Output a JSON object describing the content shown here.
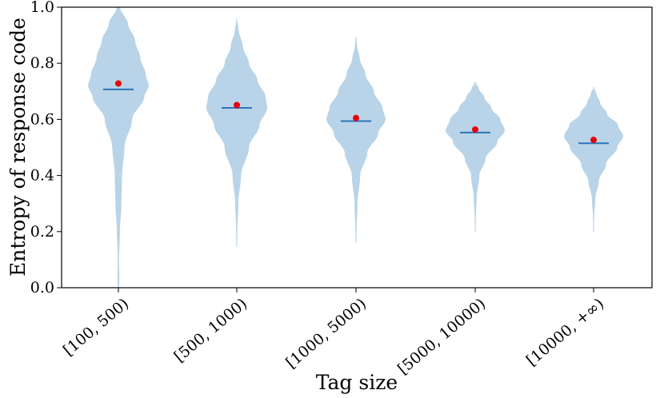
{
  "chart_data": {
    "type": "violin",
    "xlabel": "Tag size",
    "ylabel": "Entropy of response code",
    "ylim": [
      0.0,
      1.0
    ],
    "yticks": [
      "0.0",
      "0.2",
      "0.4",
      "0.6",
      "0.8",
      "1.0"
    ],
    "grid": false,
    "colors": {
      "violin": "#b9d4e8",
      "median": "#2a76b8",
      "mean": "#e8000b"
    },
    "categories": [
      "[100, 500)",
      "[500, 1000)",
      "[1000, 5000)",
      "[5000, 10000)",
      "[10000, +∞)"
    ],
    "series": [
      {
        "category": "[100, 500)",
        "median": 0.707,
        "mean": 0.728,
        "min": 0.0,
        "max": 1.0,
        "density": [
          [
            0.0,
            0.02
          ],
          [
            0.03,
            0.03
          ],
          [
            0.1,
            0.02
          ],
          [
            0.2,
            0.05
          ],
          [
            0.3,
            0.1
          ],
          [
            0.4,
            0.12
          ],
          [
            0.5,
            0.2
          ],
          [
            0.6,
            0.45
          ],
          [
            0.68,
            0.85
          ],
          [
            0.72,
            1.0
          ],
          [
            0.76,
            0.9
          ],
          [
            0.82,
            0.72
          ],
          [
            0.88,
            0.55
          ],
          [
            0.94,
            0.32
          ],
          [
            1.0,
            0.05
          ]
        ]
      },
      {
        "category": "[500, 1000)",
        "median": 0.641,
        "mean": 0.651,
        "min": 0.145,
        "max": 0.96,
        "density": [
          [
            0.145,
            0.0
          ],
          [
            0.2,
            0.02
          ],
          [
            0.3,
            0.05
          ],
          [
            0.4,
            0.14
          ],
          [
            0.5,
            0.4
          ],
          [
            0.58,
            0.75
          ],
          [
            0.64,
            1.0
          ],
          [
            0.68,
            0.95
          ],
          [
            0.74,
            0.68
          ],
          [
            0.8,
            0.4
          ],
          [
            0.86,
            0.2
          ],
          [
            0.92,
            0.06
          ],
          [
            0.96,
            0.0
          ]
        ]
      },
      {
        "category": "[1000, 5000)",
        "median": 0.594,
        "mean": 0.605,
        "min": 0.16,
        "max": 0.895,
        "density": [
          [
            0.16,
            0.0
          ],
          [
            0.2,
            0.02
          ],
          [
            0.3,
            0.05
          ],
          [
            0.4,
            0.14
          ],
          [
            0.48,
            0.38
          ],
          [
            0.55,
            0.75
          ],
          [
            0.6,
            1.0
          ],
          [
            0.64,
            0.9
          ],
          [
            0.7,
            0.6
          ],
          [
            0.76,
            0.32
          ],
          [
            0.82,
            0.12
          ],
          [
            0.86,
            0.04
          ],
          [
            0.895,
            0.0
          ]
        ]
      },
      {
        "category": "[5000, 10000)",
        "median": 0.553,
        "mean": 0.564,
        "min": 0.2,
        "max": 0.735,
        "density": [
          [
            0.2,
            0.0
          ],
          [
            0.25,
            0.02
          ],
          [
            0.32,
            0.05
          ],
          [
            0.4,
            0.14
          ],
          [
            0.46,
            0.35
          ],
          [
            0.52,
            0.75
          ],
          [
            0.56,
            1.0
          ],
          [
            0.6,
            0.85
          ],
          [
            0.64,
            0.55
          ],
          [
            0.68,
            0.3
          ],
          [
            0.71,
            0.12
          ],
          [
            0.735,
            0.0
          ]
        ]
      },
      {
        "category": "[10000, +∞)",
        "median": 0.515,
        "mean": 0.527,
        "min": 0.2,
        "max": 0.715,
        "density": [
          [
            0.2,
            0.0
          ],
          [
            0.25,
            0.02
          ],
          [
            0.32,
            0.06
          ],
          [
            0.38,
            0.18
          ],
          [
            0.44,
            0.42
          ],
          [
            0.5,
            0.8
          ],
          [
            0.54,
            1.0
          ],
          [
            0.58,
            0.82
          ],
          [
            0.62,
            0.45
          ],
          [
            0.66,
            0.22
          ],
          [
            0.69,
            0.1
          ],
          [
            0.715,
            0.0
          ]
        ]
      }
    ]
  }
}
